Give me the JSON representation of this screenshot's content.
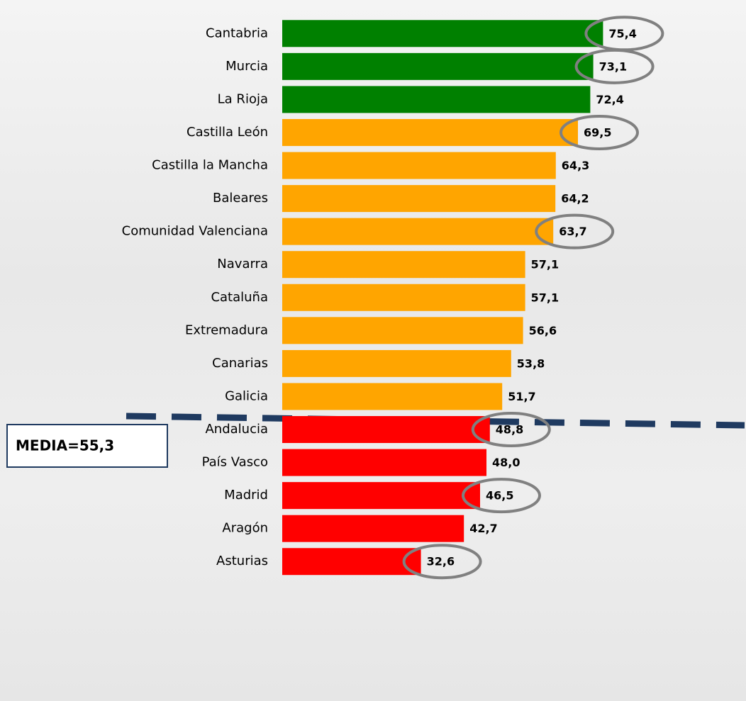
{
  "chart_data": {
    "type": "bar",
    "orientation": "horizontal",
    "categories": [
      "Cantabria",
      "Murcia",
      "La Rioja",
      "Castilla León",
      "Castilla la Mancha",
      "Baleares",
      "Comunidad Valenciana",
      "Navarra",
      "Cataluña",
      "Extremadura",
      "Canarias",
      "Galicia",
      "Andalucia",
      "País Vasco",
      "Madrid",
      "Aragón",
      "Asturias"
    ],
    "values": [
      75.4,
      73.1,
      72.4,
      69.5,
      64.3,
      64.2,
      63.7,
      57.1,
      57.1,
      56.6,
      53.8,
      51.7,
      48.8,
      48.0,
      46.5,
      42.7,
      32.6
    ],
    "value_labels": [
      "75,4",
      "73,1",
      "72,4",
      "69,5",
      "64,3",
      "64,2",
      "63,7",
      "57,1",
      "57,1",
      "56,6",
      "53,8",
      "51,7",
      "48,8",
      "48,0",
      "46,5",
      "42,7",
      "32,6"
    ],
    "colors": [
      "#008000",
      "#008000",
      "#008000",
      "#ffa500",
      "#ffa500",
      "#ffa500",
      "#ffa500",
      "#ffa500",
      "#ffa500",
      "#ffa500",
      "#ffa500",
      "#ffa500",
      "#ff0000",
      "#ff0000",
      "#ff0000",
      "#ff0000",
      "#ff0000"
    ],
    "circled": [
      true,
      true,
      false,
      true,
      false,
      false,
      true,
      false,
      false,
      false,
      false,
      false,
      true,
      false,
      true,
      false,
      true
    ],
    "xlim": [
      0,
      80
    ],
    "annotation": "MEDIA=55,3"
  }
}
